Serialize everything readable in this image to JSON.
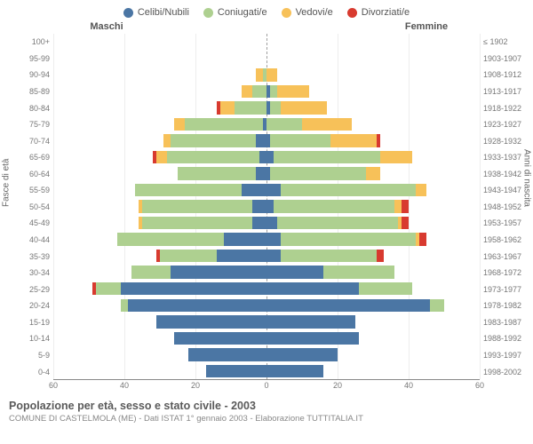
{
  "legend": [
    {
      "label": "Celibi/Nubili",
      "color": "#4b76a4"
    },
    {
      "label": "Coniugati/e",
      "color": "#aed090"
    },
    {
      "label": "Vedovi/e",
      "color": "#f7c159"
    },
    {
      "label": "Divorziati/e",
      "color": "#d83a2f"
    }
  ],
  "header_left": "Maschi",
  "header_right": "Femmine",
  "axis_left_title": "Fasce di età",
  "axis_right_title": "Anni di nascita",
  "caption_title": "Popolazione per età, sesso e stato civile - 2003",
  "caption_sub": "COMUNE DI CASTELMOLA (ME) - Dati ISTAT 1° gennaio 2003 - Elaborazione TUTTITALIA.IT",
  "xmax": 60,
  "xticks": [
    60,
    40,
    20,
    0,
    20,
    40,
    60
  ],
  "grid_color": "#ededed",
  "center_line_color": "#9f9f9f",
  "label_color": "#777",
  "age_labels": [
    "100+",
    "95-99",
    "90-94",
    "85-89",
    "80-84",
    "75-79",
    "70-74",
    "65-69",
    "60-64",
    "55-59",
    "50-54",
    "45-49",
    "40-44",
    "35-39",
    "30-34",
    "25-29",
    "20-24",
    "15-19",
    "10-14",
    "5-9",
    "0-4"
  ],
  "birth_labels": [
    "≤ 1902",
    "1903-1907",
    "1908-1912",
    "1913-1917",
    "1918-1922",
    "1923-1927",
    "1928-1932",
    "1933-1937",
    "1938-1942",
    "1943-1947",
    "1948-1952",
    "1953-1957",
    "1958-1962",
    "1963-1967",
    "1968-1972",
    "1973-1977",
    "1978-1982",
    "1983-1987",
    "1988-1992",
    "1993-1997",
    "1998-2002"
  ],
  "data_male": [
    {
      "s": 0,
      "m": 0,
      "w": 0,
      "d": 0
    },
    {
      "s": 0,
      "m": 0,
      "w": 0,
      "d": 0
    },
    {
      "s": 0,
      "m": 1,
      "w": 2,
      "d": 0
    },
    {
      "s": 0,
      "m": 4,
      "w": 3,
      "d": 0
    },
    {
      "s": 0,
      "m": 9,
      "w": 4,
      "d": 1
    },
    {
      "s": 1,
      "m": 22,
      "w": 3,
      "d": 0
    },
    {
      "s": 3,
      "m": 24,
      "w": 2,
      "d": 0
    },
    {
      "s": 2,
      "m": 26,
      "w": 3,
      "d": 1
    },
    {
      "s": 3,
      "m": 22,
      "w": 0,
      "d": 0
    },
    {
      "s": 7,
      "m": 30,
      "w": 0,
      "d": 0
    },
    {
      "s": 4,
      "m": 31,
      "w": 1,
      "d": 0
    },
    {
      "s": 4,
      "m": 31,
      "w": 1,
      "d": 0
    },
    {
      "s": 12,
      "m": 30,
      "w": 0,
      "d": 0
    },
    {
      "s": 14,
      "m": 16,
      "w": 0,
      "d": 1
    },
    {
      "s": 27,
      "m": 11,
      "w": 0,
      "d": 0
    },
    {
      "s": 41,
      "m": 7,
      "w": 0,
      "d": 1
    },
    {
      "s": 39,
      "m": 2,
      "w": 0,
      "d": 0
    },
    {
      "s": 31,
      "m": 0,
      "w": 0,
      "d": 0
    },
    {
      "s": 26,
      "m": 0,
      "w": 0,
      "d": 0
    },
    {
      "s": 22,
      "m": 0,
      "w": 0,
      "d": 0
    },
    {
      "s": 17,
      "m": 0,
      "w": 0,
      "d": 0
    }
  ],
  "data_female": [
    {
      "s": 0,
      "m": 0,
      "w": 0,
      "d": 0
    },
    {
      "s": 0,
      "m": 0,
      "w": 0,
      "d": 0
    },
    {
      "s": 0,
      "m": 0,
      "w": 3,
      "d": 0
    },
    {
      "s": 1,
      "m": 2,
      "w": 9,
      "d": 0
    },
    {
      "s": 1,
      "m": 3,
      "w": 13,
      "d": 0
    },
    {
      "s": 0,
      "m": 10,
      "w": 14,
      "d": 0
    },
    {
      "s": 1,
      "m": 17,
      "w": 13,
      "d": 1
    },
    {
      "s": 2,
      "m": 30,
      "w": 9,
      "d": 0
    },
    {
      "s": 1,
      "m": 27,
      "w": 4,
      "d": 0
    },
    {
      "s": 4,
      "m": 38,
      "w": 3,
      "d": 0
    },
    {
      "s": 2,
      "m": 34,
      "w": 2,
      "d": 2
    },
    {
      "s": 3,
      "m": 34,
      "w": 1,
      "d": 2
    },
    {
      "s": 4,
      "m": 38,
      "w": 1,
      "d": 2
    },
    {
      "s": 4,
      "m": 27,
      "w": 0,
      "d": 2
    },
    {
      "s": 16,
      "m": 20,
      "w": 0,
      "d": 0
    },
    {
      "s": 26,
      "m": 15,
      "w": 0,
      "d": 0
    },
    {
      "s": 46,
      "m": 4,
      "w": 0,
      "d": 0
    },
    {
      "s": 25,
      "m": 0,
      "w": 0,
      "d": 0
    },
    {
      "s": 26,
      "m": 0,
      "w": 0,
      "d": 0
    },
    {
      "s": 20,
      "m": 0,
      "w": 0,
      "d": 0
    },
    {
      "s": 16,
      "m": 0,
      "w": 0,
      "d": 0
    }
  ]
}
